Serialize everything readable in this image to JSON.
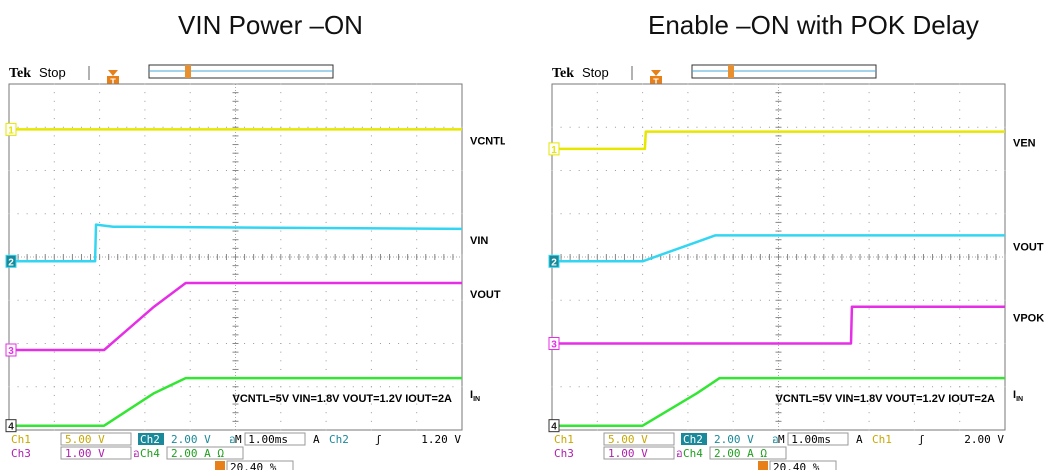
{
  "chart_data": [
    {
      "type": "line",
      "title": "VIN Power –ON",
      "brand": "Tek",
      "status": "Stop",
      "trigger_marker": "T",
      "x_divisions": 10,
      "y_divisions": 8,
      "grid": true,
      "series": [
        {
          "name": "VCNTL",
          "channel": "1",
          "color": "#e6e600",
          "x": [
            0,
            10
          ],
          "y": [
            6.95,
            6.95
          ]
        },
        {
          "name": "VIN",
          "channel": "2",
          "color": "#33d6f2",
          "x": [
            0,
            1.9,
            1.92,
            2.3,
            10
          ],
          "y": [
            3.9,
            3.9,
            4.75,
            4.7,
            4.65
          ]
        },
        {
          "name": "VOUT",
          "channel": "3",
          "color": "#e62ee6",
          "x": [
            0,
            2.1,
            3.2,
            3.9,
            10
          ],
          "y": [
            1.85,
            1.85,
            2.85,
            3.4,
            3.4
          ]
        },
        {
          "name": "IIN",
          "channel": "4",
          "color": "#33e633",
          "x": [
            0,
            2.1,
            3.2,
            3.9,
            10
          ],
          "y": [
            0.1,
            0.1,
            0.85,
            1.2,
            1.2
          ]
        }
      ],
      "labels": [
        {
          "text": "VCNTL",
          "channel": "1"
        },
        {
          "text": "VIN",
          "channel": "2"
        },
        {
          "text": "VOUT",
          "channel": "3"
        },
        {
          "text": "I",
          "sub": "IN",
          "channel": "4"
        }
      ],
      "annotation": "VCNTL=5V   VIN=1.8V   VOUT=1.2V   IOUT=2A",
      "readout": {
        "ch1": "Ch1",
        "ch1_scale": "5.00 V",
        "ch2": "Ch2",
        "ch2_scale": "2.00 V",
        "bw": "อ",
        "time": "M 1.00ms",
        "mode": "A",
        "trig_ch": "Ch2",
        "trig_slope": "ʃ",
        "trig_level": "1.20 V",
        "ch3": "Ch3",
        "ch3_scale": "1.00 V",
        "ch4": "Ch4",
        "ch4_scale": "2.00 A Ω",
        "trig_pos": "20.40 %"
      }
    },
    {
      "type": "line",
      "title": "Enable –ON with POK Delay",
      "brand": "Tek",
      "status": "Stop",
      "trigger_marker": "T",
      "x_divisions": 10,
      "y_divisions": 8,
      "grid": true,
      "series": [
        {
          "name": "VEN",
          "channel": "1",
          "color": "#e6e600",
          "x": [
            0,
            2.05,
            2.07,
            10
          ],
          "y": [
            6.5,
            6.5,
            6.9,
            6.9
          ]
        },
        {
          "name": "VOUT",
          "channel": "2",
          "color": "#33d6f2",
          "x": [
            0,
            2.0,
            3.2,
            3.6,
            10
          ],
          "y": [
            3.9,
            3.9,
            4.35,
            4.5,
            4.5
          ]
        },
        {
          "name": "VPOK",
          "channel": "3",
          "color": "#e62ee6",
          "x": [
            0,
            6.6,
            6.62,
            10
          ],
          "y": [
            2.0,
            2.0,
            2.85,
            2.85
          ]
        },
        {
          "name": "IIN",
          "channel": "4",
          "color": "#33e633",
          "x": [
            0,
            2.0,
            3.2,
            3.7,
            10
          ],
          "y": [
            0.1,
            0.1,
            0.85,
            1.2,
            1.2
          ]
        }
      ],
      "labels": [
        {
          "text": "VEN",
          "channel": "1"
        },
        {
          "text": "VOUT",
          "channel": "2"
        },
        {
          "text": "VPOK",
          "channel": "3"
        },
        {
          "text": "I",
          "sub": "IN",
          "channel": "4"
        }
      ],
      "annotation": "VCNTL=5V   VIN=1.8V   VOUT=1.2V   IOUT=2A",
      "readout": {
        "ch1": "Ch1",
        "ch1_scale": "5.00 V",
        "ch2": "Ch2",
        "ch2_scale": "2.00 V",
        "bw": "อ",
        "time": "M 1.00ms",
        "mode": "A",
        "trig_ch": "Ch1",
        "trig_slope": "ʃ",
        "trig_level": "2.00 V",
        "ch3": "Ch3",
        "ch3_scale": "1.00 V",
        "ch4": "Ch4",
        "ch4_scale": "2.00 A Ω",
        "trig_pos": "20.40 %"
      }
    }
  ]
}
